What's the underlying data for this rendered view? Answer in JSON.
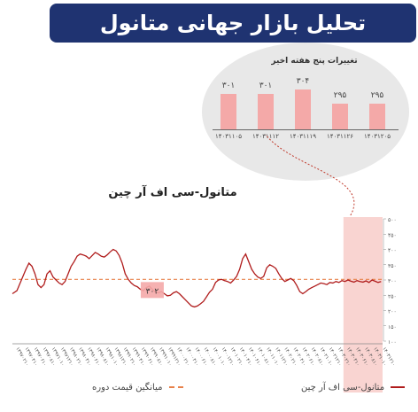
{
  "header": {
    "title": "تحلیل بازار جهانی متانول"
  },
  "weekly_panel": {
    "title": "تغییرات پنج هفته اخیر",
    "bars": [
      {
        "date": "۱۴۰۳۱۱۰۵",
        "value": "۳۰۱",
        "v": 301
      },
      {
        "date": "۱۴۰۳۱۱۱۲",
        "value": "۳۰۱",
        "v": 301
      },
      {
        "date": "۱۴۰۳۱۱۱۹",
        "value": "۳۰۴",
        "v": 304
      },
      {
        "date": "۱۴۰۳۱۱۲۶",
        "value": "۲۹۵",
        "v": 295
      },
      {
        "date": "۱۴۰۳۱۲۰۵",
        "value": "۲۹۵",
        "v": 295
      }
    ],
    "colors": {
      "bar": "#f4a9a8"
    }
  },
  "chart_data": {
    "type": "line",
    "title": "متانول-سی اف آر چین",
    "yticks": [
      "۵۰۰",
      "۴۵۰",
      "۴۰۰",
      "۳۵۰",
      "۳۰۰",
      "۲۵۰",
      "۲۰۰",
      "۱۵۰",
      "۱۰۰"
    ],
    "ylim": [
      100,
      500
    ],
    "series": [
      {
        "name": "متانول-سی اف آر چین",
        "color": "#b01c1c",
        "points": [
          [
            0,
            255
          ],
          [
            3,
            265
          ],
          [
            6,
            300
          ],
          [
            9,
            335
          ],
          [
            11,
            355
          ],
          [
            13,
            345
          ],
          [
            15,
            320
          ],
          [
            17,
            285
          ],
          [
            19,
            275
          ],
          [
            21,
            285
          ],
          [
            23,
            320
          ],
          [
            25,
            330
          ],
          [
            27,
            310
          ],
          [
            29,
            300
          ],
          [
            31,
            290
          ],
          [
            33,
            285
          ],
          [
            35,
            295
          ],
          [
            37,
            320
          ],
          [
            39,
            345
          ],
          [
            41,
            360
          ],
          [
            43,
            378
          ],
          [
            45,
            385
          ],
          [
            47,
            382
          ],
          [
            49,
            378
          ],
          [
            51,
            370
          ],
          [
            53,
            380
          ],
          [
            55,
            390
          ],
          [
            57,
            385
          ],
          [
            59,
            378
          ],
          [
            61,
            375
          ],
          [
            63,
            382
          ],
          [
            65,
            392
          ],
          [
            67,
            400
          ],
          [
            69,
            395
          ],
          [
            71,
            380
          ],
          [
            73,
            355
          ],
          [
            75,
            320
          ],
          [
            77,
            302
          ],
          [
            79,
            290
          ],
          [
            81,
            282
          ],
          [
            83,
            278
          ],
          [
            85,
            270
          ],
          [
            87,
            265
          ],
          [
            89,
            275
          ],
          [
            91,
            280
          ],
          [
            93,
            270
          ],
          [
            95,
            260
          ],
          [
            97,
            258
          ],
          [
            99,
            262
          ],
          [
            101,
            255
          ],
          [
            103,
            248
          ],
          [
            105,
            250
          ],
          [
            107,
            258
          ],
          [
            109,
            262
          ],
          [
            111,
            255
          ],
          [
            113,
            245
          ],
          [
            115,
            235
          ],
          [
            117,
            225
          ],
          [
            119,
            215
          ],
          [
            121,
            212
          ],
          [
            123,
            215
          ],
          [
            125,
            222
          ],
          [
            127,
            230
          ],
          [
            129,
            245
          ],
          [
            131,
            260
          ],
          [
            133,
            270
          ],
          [
            135,
            292
          ],
          [
            137,
            300
          ],
          [
            139,
            302
          ],
          [
            141,
            298
          ],
          [
            143,
            295
          ],
          [
            145,
            290
          ],
          [
            147,
            300
          ],
          [
            149,
            312
          ],
          [
            151,
            335
          ],
          [
            153,
            370
          ],
          [
            155,
            385
          ],
          [
            157,
            360
          ],
          [
            159,
            335
          ],
          [
            161,
            320
          ],
          [
            163,
            310
          ],
          [
            165,
            305
          ],
          [
            167,
            312
          ],
          [
            169,
            340
          ],
          [
            171,
            350
          ],
          [
            173,
            345
          ],
          [
            175,
            338
          ],
          [
            177,
            320
          ],
          [
            179,
            305
          ],
          [
            181,
            295
          ],
          [
            183,
            300
          ],
          [
            185,
            305
          ],
          [
            187,
            298
          ],
          [
            189,
            282
          ],
          [
            191,
            262
          ],
          [
            193,
            255
          ],
          [
            195,
            262
          ],
          [
            197,
            270
          ],
          [
            199,
            275
          ],
          [
            201,
            280
          ],
          [
            203,
            285
          ],
          [
            205,
            290
          ],
          [
            207,
            288
          ],
          [
            209,
            285
          ],
          [
            211,
            292
          ],
          [
            213,
            290
          ],
          [
            215,
            295
          ],
          [
            217,
            292
          ],
          [
            219,
            298
          ],
          [
            221,
            295
          ],
          [
            223,
            300
          ],
          [
            225,
            296
          ],
          [
            227,
            293
          ],
          [
            229,
            298
          ],
          [
            231,
            295
          ],
          [
            233,
            293
          ],
          [
            235,
            297
          ],
          [
            237,
            292
          ],
          [
            239,
            300
          ],
          [
            241,
            296
          ],
          [
            243,
            292
          ],
          [
            245,
            295
          ]
        ]
      },
      {
        "name": "میانگین قیمت دوره",
        "color": "#e8814a",
        "value": 302
      }
    ],
    "annotation": {
      "label": "۳۰۲",
      "x": 90,
      "y": 270
    },
    "highlight": {
      "from": 220,
      "to": 246
    },
    "x_ticks": [
      "۱۳۹۷۰۲۱۰",
      "۱۳۹۷۰۴۱۰",
      "۱۳۹۷۰۶۱۰",
      "۱۳۹۷۰۸۱۰",
      "۱۳۹۷۱۰۱۰",
      "۱۳۹۷۱۲۱۰",
      "۱۳۹۸۰۲۱۰",
      "۱۳۹۸۰۴۱۰",
      "۱۳۹۸۰۶۱۰",
      "۱۳۹۸۰۸۱۰",
      "۱۳۹۸۱۰۱۰",
      "۱۳۹۸۱۲۱۰",
      "۱۳۹۹۰۲۱۰",
      "۱۳۹۹۰۴۱۰",
      "۱۳۹۹۰۶۱۰",
      "۱۳۹۹۰۸۱۰",
      "۱۳۹۹۱۰۱۰",
      "۱۳۹۹۱۲۱۰",
      "۱۴۰۰۰۲۱۰",
      "۱۴۰۰۰۴۱۰",
      "۱۴۰۰۰۶۱۰",
      "۱۴۰۰۰۸۱۰",
      "۱۴۰۰۱۰۱۰",
      "۱۴۰۰۱۲۱۰",
      "۱۴۰۱۰۲۱۰",
      "۱۴۰۱۰۴۱۰",
      "۱۴۰۱۰۶۱۰",
      "۱۴۰۱۰۸۱۰",
      "۱۴۰۱۱۰۱۰",
      "۱۴۰۱۱۲۱۰",
      "۱۴۰۲۰۲۱۰",
      "۱۴۰۲۰۴۱۰",
      "۱۴۰۲۰۶۱۰",
      "۱۴۰۲۰۸۱۰",
      "۱۴۰۲۱۰۱۰",
      "۱۴۰۲۱۲۱۰",
      "۱۴۰۳۰۲۱۰",
      "۱۴۰۳۰۴۱۰",
      "۱۴۰۳۰۶۱۰",
      "۱۴۰۳۰۸۱۰",
      "۱۴۰۳۱۰۱۰",
      "۱۴۰۳۱۲۱۰"
    ],
    "grid": false
  },
  "legend": {
    "series_label": "متانول-سی اف آر چین",
    "average_label": "میانگین قیمت دوره"
  }
}
